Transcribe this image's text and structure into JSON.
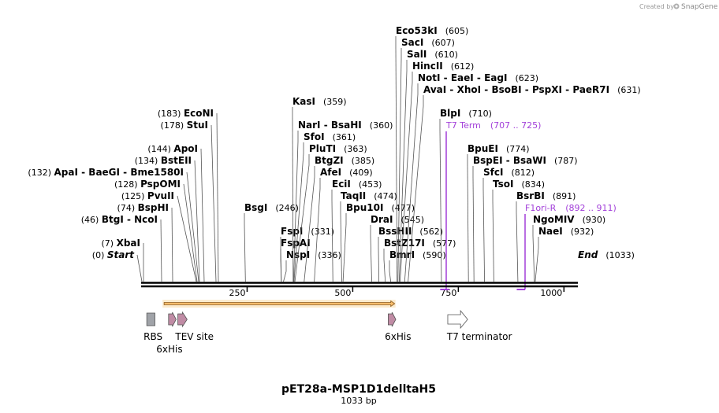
{
  "credit": {
    "prefix": "Created by",
    "brand": "SnapGene"
  },
  "title": "pET28a-MSP1D1delltaH5",
  "length_label": "1033 bp",
  "sequence_length": 1033,
  "ruler_ticks": [
    {
      "value": 250,
      "label": "250"
    },
    {
      "value": 500,
      "label": "500"
    },
    {
      "value": 750,
      "label": "750"
    },
    {
      "value": 1000,
      "label": "1000"
    }
  ],
  "left_sites": [
    {
      "position": 0,
      "position_label": "(0)",
      "parts": [
        "Start"
      ],
      "terminal": true
    },
    {
      "position": 7,
      "position_label": "(7)",
      "parts": [
        "XbaI"
      ]
    },
    {
      "position": 46,
      "position_label": "(46)",
      "parts": [
        "BtgI",
        "NcoI"
      ]
    },
    {
      "position": 74,
      "position_label": "(74)",
      "parts": [
        "BspHI"
      ]
    },
    {
      "position": 125,
      "position_label": "(125)",
      "parts": [
        "PvuII"
      ]
    },
    {
      "position": 128,
      "position_label": "(128)",
      "parts": [
        "PspOMI"
      ]
    },
    {
      "position": 132,
      "position_label": "(132)",
      "parts": [
        "ApaI",
        "BaeGI",
        "Bme1580I"
      ]
    },
    {
      "position": 134,
      "position_label": "(134)",
      "parts": [
        "BstEII"
      ]
    },
    {
      "position": 144,
      "position_label": "(144)",
      "parts": [
        "ApoI"
      ]
    },
    {
      "position": 178,
      "position_label": "(178)",
      "parts": [
        "StuI"
      ]
    },
    {
      "position": 183,
      "position_label": "(183)",
      "parts": [
        "EcoNI"
      ]
    }
  ],
  "right_sites": [
    {
      "position": 246,
      "position_label": "(246)",
      "parts": [
        "BsgI"
      ]
    },
    {
      "position": 331,
      "position_label": "(331)",
      "parts": [
        "FspI"
      ]
    },
    {
      "position": 331,
      "position_label": "",
      "parts": [
        "FspAI"
      ]
    },
    {
      "position": 336,
      "position_label": "(336)",
      "parts": [
        "NspI"
      ]
    },
    {
      "position": 359,
      "position_label": "(359)",
      "parts": [
        "KasI"
      ]
    },
    {
      "position": 360,
      "position_label": "(360)",
      "parts": [
        "NarI",
        "BsaHI"
      ]
    },
    {
      "position": 361,
      "position_label": "(361)",
      "parts": [
        "SfoI"
      ]
    },
    {
      "position": 363,
      "position_label": "(363)",
      "parts": [
        "PluTI"
      ]
    },
    {
      "position": 385,
      "position_label": "(385)",
      "parts": [
        "BtgZI"
      ]
    },
    {
      "position": 409,
      "position_label": "(409)",
      "parts": [
        "AfeI"
      ]
    },
    {
      "position": 453,
      "position_label": "(453)",
      "parts": [
        "EciI"
      ]
    },
    {
      "position": 474,
      "position_label": "(474)",
      "parts": [
        "TaqII"
      ]
    },
    {
      "position": 477,
      "position_label": "(477)",
      "parts": [
        "Bpu10I"
      ]
    },
    {
      "position": 545,
      "position_label": "(545)",
      "parts": [
        "DraI"
      ]
    },
    {
      "position": 562,
      "position_label": "(562)",
      "parts": [
        "BssHII"
      ]
    },
    {
      "position": 577,
      "position_label": "(577)",
      "parts": [
        "BstZ17I"
      ]
    },
    {
      "position": 590,
      "position_label": "(590)",
      "parts": [
        "BmrI"
      ]
    },
    {
      "position": 605,
      "position_label": "(605)",
      "parts": [
        "Eco53kI"
      ]
    },
    {
      "position": 607,
      "position_label": "(607)",
      "parts": [
        "SacI"
      ]
    },
    {
      "position": 610,
      "position_label": "(610)",
      "parts": [
        "SalI"
      ]
    },
    {
      "position": 612,
      "position_label": "(612)",
      "parts": [
        "HincII"
      ]
    },
    {
      "position": 623,
      "position_label": "(623)",
      "parts": [
        "NotI",
        "EaeI",
        "EagI"
      ]
    },
    {
      "position": 631,
      "position_label": "(631)",
      "parts": [
        "AvaI",
        "XhoI",
        "BsoBI",
        "PspXI",
        "PaeR7I"
      ]
    },
    {
      "position": 710,
      "position_label": "(710)",
      "parts": [
        "BlpI"
      ]
    },
    {
      "position": 774,
      "position_label": "(774)",
      "parts": [
        "BpuEI"
      ]
    },
    {
      "position": 787,
      "position_label": "(787)",
      "parts": [
        "BspEI",
        "BsaWI"
      ]
    },
    {
      "position": 812,
      "position_label": "(812)",
      "parts": [
        "SfcI"
      ]
    },
    {
      "position": 834,
      "position_label": "(834)",
      "parts": [
        "TsoI"
      ]
    },
    {
      "position": 891,
      "position_label": "(891)",
      "parts": [
        "BsrBI"
      ]
    },
    {
      "position": 930,
      "position_label": "(930)",
      "parts": [
        "NgoMIV"
      ]
    },
    {
      "position": 932,
      "position_label": "(932)",
      "parts": [
        "NaeI"
      ]
    },
    {
      "position": 1033,
      "position_label": "(1033)",
      "parts": [
        "End"
      ],
      "terminal": true
    }
  ],
  "primers": [
    {
      "name": "T7 Term",
      "range_label": "(707 .. 725)",
      "start": 707,
      "end": 725,
      "color": "#a23fd9"
    },
    {
      "name": "F1ori-R",
      "range_label": "(892 .. 911)",
      "start": 892,
      "end": 911,
      "color": "#a23fd9"
    }
  ],
  "orf": {
    "start": 46,
    "end": 605,
    "fill": "#f9be6c",
    "stroke": "#8a5a1e"
  },
  "features": [
    {
      "name": "RBS",
      "start": 5,
      "end": 28,
      "shape": "box",
      "color": "#a0a3a8"
    },
    {
      "name": "6xHis",
      "start": 64,
      "end": 82,
      "shape": "arrow",
      "color": "#c08ca5"
    },
    {
      "name": "TEV site",
      "start": 86,
      "end": 108,
      "shape": "arrow",
      "color": "#c08ca5"
    },
    {
      "name": "6xHis",
      "start": 584,
      "end": 602,
      "shape": "arrow",
      "color": "#c08ca5"
    },
    {
      "name": "T7 terminator",
      "start": 725,
      "end": 772,
      "shape": "arrow",
      "color": "#ffffff"
    }
  ],
  "feature_labels": [
    {
      "text": "RBS",
      "anchor": 5,
      "row": 1
    },
    {
      "text": "6xHis",
      "anchor": 35,
      "row": 2
    },
    {
      "text": "TEV site",
      "anchor": 80,
      "row": 1
    },
    {
      "text": "6xHis",
      "anchor": 576,
      "row": 1
    },
    {
      "text": "T7 terminator",
      "anchor": 723,
      "row": 1
    }
  ],
  "colors": {
    "backbone": "#000000",
    "primer": "#a23fd9",
    "orf": "#f9be6c"
  }
}
